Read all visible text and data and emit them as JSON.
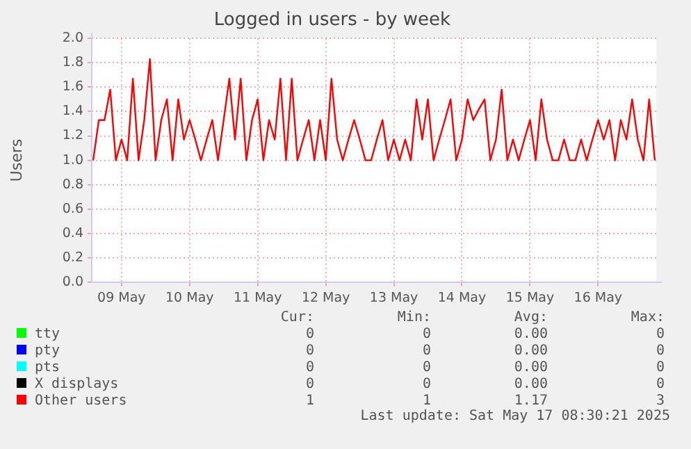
{
  "chart_data": {
    "type": "line",
    "title": "Logged in users - by week",
    "ylabel": "Users",
    "x": [
      "2025-05-09T02:00",
      "2025-05-09T04:00",
      "2025-05-09T06:00",
      "2025-05-09T08:00",
      "2025-05-09T10:00",
      "2025-05-09T12:00",
      "2025-05-09T14:00",
      "2025-05-09T16:00",
      "2025-05-09T18:00",
      "2025-05-09T20:00",
      "2025-05-09T22:00",
      "2025-05-10T00:00",
      "2025-05-10T02:00",
      "2025-05-10T04:00",
      "2025-05-10T06:00",
      "2025-05-10T08:00",
      "2025-05-10T10:00",
      "2025-05-10T12:00",
      "2025-05-10T14:00",
      "2025-05-10T16:00",
      "2025-05-10T18:00",
      "2025-05-10T20:00",
      "2025-05-10T22:00",
      "2025-05-11T00:00",
      "2025-05-11T02:00",
      "2025-05-11T04:00",
      "2025-05-11T06:00",
      "2025-05-11T08:00",
      "2025-05-11T10:00",
      "2025-05-11T12:00",
      "2025-05-11T14:00",
      "2025-05-11T16:00",
      "2025-05-11T18:00",
      "2025-05-11T20:00",
      "2025-05-11T22:00",
      "2025-05-12T00:00",
      "2025-05-12T02:00",
      "2025-05-12T04:00",
      "2025-05-12T06:00",
      "2025-05-12T08:00",
      "2025-05-12T10:00",
      "2025-05-12T12:00",
      "2025-05-12T14:00",
      "2025-05-12T16:00",
      "2025-05-12T18:00",
      "2025-05-12T20:00",
      "2025-05-12T22:00",
      "2025-05-13T00:00",
      "2025-05-13T02:00",
      "2025-05-13T04:00",
      "2025-05-13T06:00",
      "2025-05-13T08:00",
      "2025-05-13T10:00",
      "2025-05-13T12:00",
      "2025-05-13T14:00",
      "2025-05-13T16:00",
      "2025-05-13T18:00",
      "2025-05-13T20:00",
      "2025-05-13T22:00",
      "2025-05-14T00:00",
      "2025-05-14T02:00",
      "2025-05-14T04:00",
      "2025-05-14T06:00",
      "2025-05-14T08:00",
      "2025-05-14T10:00",
      "2025-05-14T12:00",
      "2025-05-14T14:00",
      "2025-05-14T16:00",
      "2025-05-14T18:00",
      "2025-05-14T20:00",
      "2025-05-14T22:00",
      "2025-05-15T00:00",
      "2025-05-15T02:00",
      "2025-05-15T04:00",
      "2025-05-15T06:00",
      "2025-05-15T08:00",
      "2025-05-15T10:00",
      "2025-05-15T12:00",
      "2025-05-15T14:00",
      "2025-05-15T16:00",
      "2025-05-15T18:00",
      "2025-05-15T20:00",
      "2025-05-15T22:00",
      "2025-05-16T00:00",
      "2025-05-16T02:00",
      "2025-05-16T04:00",
      "2025-05-16T06:00",
      "2025-05-16T08:00",
      "2025-05-16T10:00",
      "2025-05-16T12:00",
      "2025-05-16T14:00",
      "2025-05-16T16:00",
      "2025-05-16T18:00",
      "2025-05-16T20:00",
      "2025-05-16T22:00",
      "2025-05-17T00:00",
      "2025-05-17T02:00",
      "2025-05-17T04:00",
      "2025-05-17T06:00",
      "2025-05-17T08:00"
    ],
    "series": [
      {
        "name": "tty",
        "color": "#00ff00",
        "values": [
          null,
          null,
          null,
          null,
          null,
          null,
          null,
          null,
          null,
          null,
          null,
          null,
          null,
          null,
          null,
          null,
          null,
          null,
          null,
          null,
          null,
          null,
          null,
          null,
          null,
          null,
          null,
          null,
          null,
          null,
          null,
          null,
          null,
          null,
          null,
          null,
          null,
          null,
          null,
          null,
          null,
          null,
          null,
          null,
          null,
          null,
          null,
          null,
          null,
          null,
          null,
          null,
          null,
          null,
          null,
          null,
          null,
          null,
          null,
          null,
          null,
          null,
          null,
          null,
          null,
          null,
          null,
          null,
          null,
          null,
          null,
          null,
          null,
          null,
          null,
          null,
          null,
          null,
          null,
          null,
          null,
          null,
          null,
          null,
          null,
          null,
          null,
          null,
          null,
          null,
          null,
          null,
          null,
          null,
          null,
          null,
          null,
          null,
          null,
          null
        ]
      },
      {
        "name": "pty",
        "color": "#0000ff",
        "values": [
          null,
          null,
          null,
          null,
          null,
          null,
          null,
          null,
          null,
          null,
          null,
          null,
          null,
          null,
          null,
          null,
          null,
          null,
          null,
          null,
          null,
          null,
          null,
          null,
          null,
          null,
          null,
          null,
          null,
          null,
          null,
          null,
          null,
          null,
          null,
          null,
          null,
          null,
          null,
          null,
          null,
          null,
          null,
          null,
          null,
          null,
          null,
          null,
          null,
          null,
          null,
          null,
          null,
          null,
          null,
          null,
          null,
          null,
          null,
          null,
          null,
          null,
          null,
          null,
          null,
          null,
          null,
          null,
          null,
          null,
          null,
          null,
          null,
          null,
          null,
          null,
          null,
          null,
          null,
          null,
          null,
          null,
          null,
          null,
          null,
          null,
          null,
          null,
          null,
          null,
          null,
          null,
          null,
          null,
          null,
          null,
          null,
          null,
          null,
          null
        ]
      },
      {
        "name": "pts",
        "color": "#00ffff",
        "values": [
          null,
          null,
          null,
          null,
          null,
          null,
          null,
          null,
          null,
          null,
          null,
          null,
          null,
          null,
          null,
          null,
          null,
          null,
          null,
          null,
          null,
          null,
          null,
          null,
          null,
          null,
          null,
          null,
          null,
          null,
          null,
          null,
          null,
          null,
          null,
          null,
          null,
          null,
          null,
          null,
          null,
          null,
          null,
          null,
          null,
          null,
          null,
          null,
          null,
          null,
          null,
          null,
          null,
          null,
          null,
          null,
          null,
          null,
          null,
          null,
          null,
          null,
          null,
          null,
          null,
          null,
          null,
          null,
          null,
          null,
          null,
          null,
          null,
          null,
          null,
          null,
          null,
          null,
          null,
          null,
          null,
          null,
          null,
          null,
          null,
          null,
          null,
          null,
          null,
          null,
          null,
          null,
          null,
          null,
          null,
          null,
          null,
          null,
          null,
          null
        ]
      },
      {
        "name": "X displays",
        "color": "#000000",
        "values": [
          null,
          null,
          null,
          null,
          null,
          null,
          null,
          null,
          null,
          null,
          null,
          null,
          null,
          null,
          null,
          null,
          null,
          null,
          null,
          null,
          null,
          null,
          null,
          null,
          null,
          null,
          null,
          null,
          null,
          null,
          null,
          null,
          null,
          null,
          null,
          null,
          null,
          null,
          null,
          null,
          null,
          null,
          null,
          null,
          null,
          null,
          null,
          null,
          null,
          null,
          null,
          null,
          null,
          null,
          null,
          null,
          null,
          null,
          null,
          null,
          null,
          null,
          null,
          null,
          null,
          null,
          null,
          null,
          null,
          null,
          null,
          null,
          null,
          null,
          null,
          null,
          null,
          null,
          null,
          null,
          null,
          null,
          null,
          null,
          null,
          null,
          null,
          null,
          null,
          null,
          null,
          null,
          null,
          null,
          null,
          null,
          null,
          null,
          null,
          null
        ]
      },
      {
        "name": "Other users",
        "color": "#ff0000",
        "values": [
          1.0,
          1.33,
          1.33,
          1.58,
          1.0,
          1.17,
          1.0,
          1.67,
          1.0,
          1.33,
          1.83,
          1.0,
          1.33,
          1.5,
          1.0,
          1.5,
          1.17,
          1.33,
          1.17,
          1.0,
          1.17,
          1.33,
          1.0,
          1.33,
          1.67,
          1.17,
          1.67,
          1.0,
          1.33,
          1.5,
          1.0,
          1.33,
          1.17,
          1.67,
          1.0,
          1.67,
          1.0,
          1.17,
          1.33,
          1.0,
          1.33,
          1.0,
          1.67,
          1.17,
          1.0,
          1.17,
          1.33,
          1.17,
          1.0,
          1.0,
          1.17,
          1.33,
          1.0,
          1.17,
          1.0,
          1.17,
          1.0,
          1.5,
          1.17,
          1.5,
          1.0,
          1.17,
          1.33,
          1.5,
          1.0,
          1.17,
          1.5,
          1.33,
          1.42,
          1.5,
          1.0,
          1.17,
          1.58,
          1.0,
          1.17,
          1.0,
          1.17,
          1.33,
          1.0,
          1.5,
          1.17,
          1.0,
          1.0,
          1.17,
          1.0,
          1.0,
          1.17,
          1.0,
          1.17,
          1.33,
          1.17,
          1.33,
          1.0,
          1.33,
          1.17,
          1.5,
          1.17,
          1.0,
          1.5,
          1.0
        ]
      }
    ],
    "xlim": [
      "2025-05-09T01:30",
      "2025-05-17T08:30"
    ],
    "xticks": [
      {
        "value": "2025-05-09T12:00",
        "label": "09 May"
      },
      {
        "value": "2025-05-10T12:00",
        "label": "10 May"
      },
      {
        "value": "2025-05-11T12:00",
        "label": "11 May"
      },
      {
        "value": "2025-05-12T12:00",
        "label": "12 May"
      },
      {
        "value": "2025-05-13T12:00",
        "label": "13 May"
      },
      {
        "value": "2025-05-14T12:00",
        "label": "14 May"
      },
      {
        "value": "2025-05-15T12:00",
        "label": "15 May"
      },
      {
        "value": "2025-05-16T12:00",
        "label": "16 May"
      }
    ],
    "ylim": [
      0,
      2
    ],
    "yticks": [
      {
        "value": 0,
        "label": "0.0"
      },
      {
        "value": 0.2,
        "label": "0.2"
      },
      {
        "value": 0.4,
        "label": "0.4"
      },
      {
        "value": 0.6,
        "label": "0.6"
      },
      {
        "value": 0.8,
        "label": "0.8"
      },
      {
        "value": 1,
        "label": "1.0"
      },
      {
        "value": 1.2,
        "label": "1.2"
      },
      {
        "value": 1.4,
        "label": "1.4"
      },
      {
        "value": 1.6,
        "label": "1.6"
      },
      {
        "value": 1.8,
        "label": "1.8"
      },
      {
        "value": 2,
        "label": "2.0"
      }
    ],
    "grid": true,
    "legend": "bottom",
    "marker": "none",
    "line_style": "solid",
    "annotations": [
      "Cur:",
      "Min:",
      "Avg:",
      "Max:",
      "0",
      "0",
      "0.00",
      "0",
      "0",
      "0",
      "0.00",
      "0",
      "0",
      "0",
      "0.00",
      "0",
      "0",
      "0",
      "0.00",
      "0",
      "1",
      "1",
      "1.17",
      "3",
      "Last update: Sat May 17 08:30:21 2025"
    ]
  }
}
